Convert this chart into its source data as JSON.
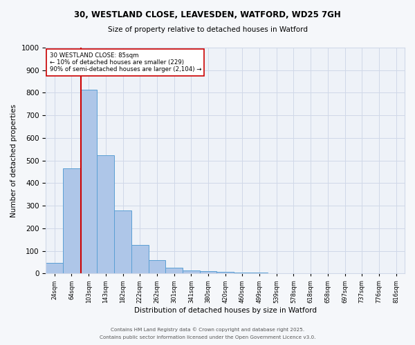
{
  "title_line1": "30, WESTLAND CLOSE, LEAVESDEN, WATFORD, WD25 7GH",
  "title_line2": "Size of property relative to detached houses in Watford",
  "xlabel": "Distribution of detached houses by size in Watford",
  "ylabel": "Number of detached properties",
  "footnote1": "Contains HM Land Registry data © Crown copyright and database right 2025.",
  "footnote2": "Contains public sector information licensed under the Open Government Licence v3.0.",
  "bin_labels": [
    "24sqm",
    "64sqm",
    "103sqm",
    "143sqm",
    "182sqm",
    "222sqm",
    "262sqm",
    "301sqm",
    "341sqm",
    "380sqm",
    "420sqm",
    "460sqm",
    "499sqm",
    "539sqm",
    "578sqm",
    "618sqm",
    "658sqm",
    "697sqm",
    "737sqm",
    "776sqm",
    "816sqm"
  ],
  "bar_values": [
    47,
    465,
    815,
    525,
    280,
    127,
    60,
    25,
    12,
    10,
    7,
    4,
    3,
    2,
    2,
    1,
    1,
    0,
    0,
    0,
    0
  ],
  "bar_color": "#aec6e8",
  "bar_edge_color": "#5a9fd4",
  "grid_color": "#d0d8e8",
  "background_color": "#eef2f8",
  "fig_background_color": "#f5f7fa",
  "vline_x": 1.54,
  "vline_color": "#cc0000",
  "annotation_text": "30 WESTLAND CLOSE: 85sqm\n← 10% of detached houses are smaller (229)\n90% of semi-detached houses are larger (2,104) →",
  "ylim": [
    0,
    1000
  ],
  "yticks": [
    0,
    100,
    200,
    300,
    400,
    500,
    600,
    700,
    800,
    900,
    1000
  ]
}
